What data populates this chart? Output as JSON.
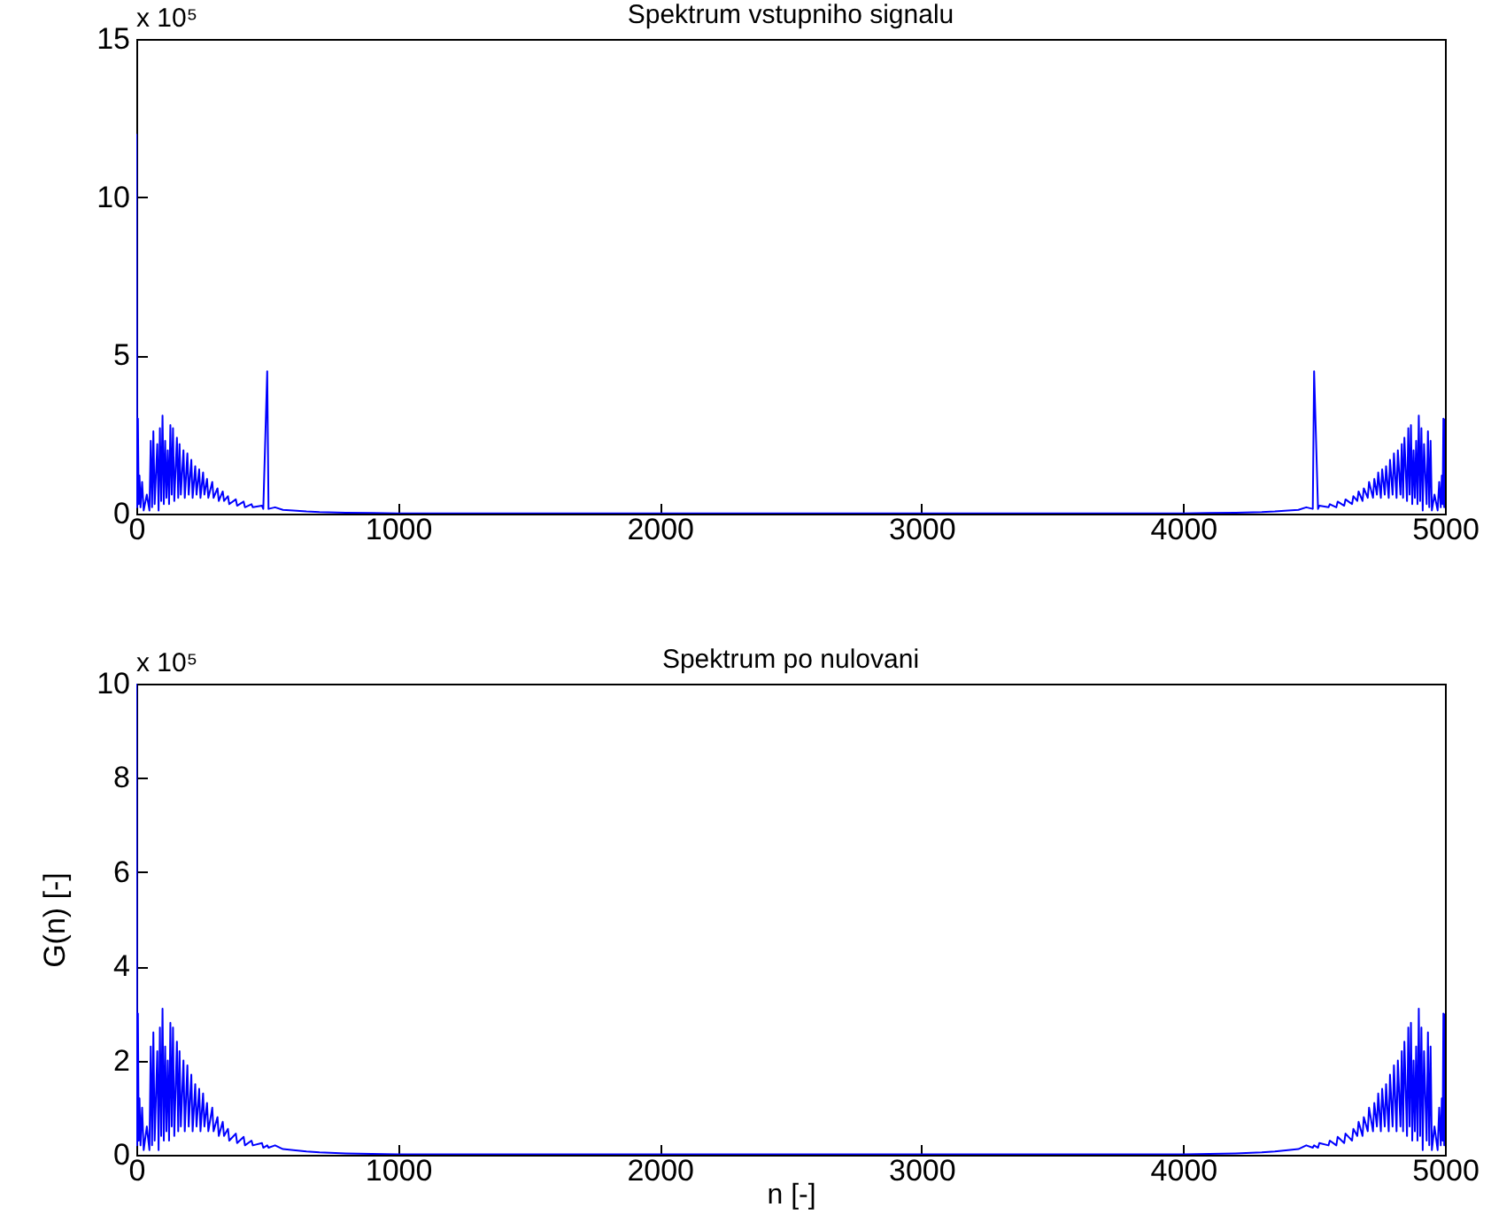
{
  "chart_data": [
    {
      "type": "line",
      "title": "Spektrum vstupniho signalu",
      "annotations": [
        "x 10⁵"
      ],
      "xlim": [
        0,
        5000
      ],
      "xticks": [
        0,
        1000,
        2000,
        3000,
        4000,
        5000
      ],
      "ylim": [
        0,
        15
      ],
      "yticks": [
        0,
        5,
        10,
        15
      ],
      "x": [
        0,
        3,
        6,
        9,
        12,
        16,
        22,
        28,
        40,
        50,
        55,
        60,
        65,
        70,
        80,
        85,
        90,
        95,
        100,
        105,
        110,
        115,
        120,
        125,
        130,
        135,
        140,
        145,
        155,
        160,
        165,
        170,
        180,
        185,
        195,
        200,
        210,
        215,
        225,
        230,
        240,
        245,
        255,
        260,
        270,
        275,
        290,
        295,
        310,
        315,
        330,
        335,
        350,
        355,
        380,
        385,
        410,
        415,
        440,
        445,
        480,
        485,
        500,
        505,
        530,
        560,
        600,
        650,
        700,
        800,
        900,
        1000,
        2000,
        3000,
        4000,
        4100,
        4200,
        4300,
        4350,
        4400,
        4440,
        4470,
        4495,
        4500,
        4515,
        4520,
        4555,
        4560,
        4585,
        4590,
        4615,
        4620,
        4645,
        4650,
        4665,
        4670,
        4685,
        4690,
        4705,
        4710,
        4725,
        4730,
        4740,
        4745,
        4755,
        4760,
        4770,
        4775,
        4785,
        4790,
        4800,
        4805,
        4815,
        4820,
        4830,
        4835,
        4840,
        4845,
        4855,
        4860,
        4865,
        4870,
        4875,
        4880,
        4885,
        4890,
        4895,
        4900,
        4905,
        4910,
        4915,
        4920,
        4930,
        4935,
        4940,
        4945,
        4950,
        4960,
        4972,
        4978,
        4984,
        4988,
        4991,
        4994,
        4997,
        5000
      ],
      "series": [
        {
          "color": "#0000ff",
          "values": [
            12,
            0.2,
            3.0,
            0.3,
            1.2,
            0.2,
            1.0,
            0.1,
            0.6,
            0.1,
            2.3,
            0.2,
            2.6,
            0.3,
            2.2,
            0.1,
            2.7,
            0.4,
            3.1,
            0.3,
            2.3,
            0.5,
            2.0,
            0.3,
            2.8,
            0.6,
            2.7,
            0.4,
            2.4,
            0.5,
            2.2,
            0.6,
            2.0,
            0.5,
            1.9,
            0.6,
            1.7,
            0.5,
            1.5,
            0.6,
            1.4,
            0.5,
            1.3,
            0.6,
            1.1,
            0.5,
            1.0,
            0.5,
            0.8,
            0.4,
            0.7,
            0.4,
            0.55,
            0.3,
            0.45,
            0.25,
            0.38,
            0.2,
            0.3,
            0.2,
            0.25,
            0.15,
            4.5,
            0.15,
            0.2,
            0.12,
            0.1,
            0.07,
            0.05,
            0.03,
            0.02,
            0.01,
            0.01,
            0.01,
            0.01,
            0.02,
            0.03,
            0.05,
            0.07,
            0.1,
            0.12,
            0.2,
            0.15,
            4.5,
            0.15,
            0.25,
            0.2,
            0.3,
            0.2,
            0.38,
            0.25,
            0.45,
            0.3,
            0.55,
            0.4,
            0.7,
            0.4,
            0.8,
            0.5,
            1.0,
            0.5,
            1.1,
            0.6,
            1.3,
            0.5,
            1.4,
            0.6,
            1.5,
            0.5,
            1.7,
            0.6,
            1.9,
            0.5,
            2.0,
            0.6,
            2.2,
            0.5,
            2.4,
            0.4,
            2.7,
            0.6,
            2.8,
            0.3,
            2.0,
            0.5,
            2.3,
            0.3,
            3.1,
            0.4,
            2.7,
            0.1,
            2.2,
            0.3,
            2.6,
            0.2,
            2.3,
            0.1,
            0.6,
            0.1,
            1.0,
            0.2,
            1.2,
            0.3,
            3.0,
            0.2,
            3.0
          ]
        }
      ]
    },
    {
      "type": "line",
      "title": "Spektrum po nulovani",
      "xlabel": "n [-]",
      "ylabel": "G(n) [-]",
      "annotations": [
        "x 10⁵"
      ],
      "xlim": [
        0,
        5000
      ],
      "xticks": [
        0,
        1000,
        2000,
        3000,
        4000,
        5000
      ],
      "ylim": [
        0,
        10
      ],
      "yticks": [
        0,
        2,
        4,
        6,
        8,
        10
      ],
      "x": [
        0,
        3,
        6,
        9,
        12,
        16,
        22,
        28,
        40,
        50,
        55,
        60,
        65,
        70,
        80,
        85,
        90,
        95,
        100,
        105,
        110,
        115,
        120,
        125,
        130,
        135,
        140,
        145,
        155,
        160,
        165,
        170,
        180,
        185,
        195,
        200,
        210,
        215,
        225,
        230,
        240,
        245,
        255,
        260,
        270,
        275,
        290,
        295,
        310,
        315,
        330,
        335,
        350,
        355,
        380,
        385,
        410,
        415,
        440,
        445,
        480,
        485,
        500,
        505,
        530,
        560,
        600,
        650,
        700,
        800,
        900,
        1000,
        2000,
        3000,
        4000,
        4100,
        4200,
        4300,
        4350,
        4400,
        4440,
        4470,
        4495,
        4500,
        4515,
        4520,
        4555,
        4560,
        4585,
        4590,
        4615,
        4620,
        4645,
        4650,
        4665,
        4670,
        4685,
        4690,
        4705,
        4710,
        4725,
        4730,
        4740,
        4745,
        4755,
        4760,
        4770,
        4775,
        4785,
        4790,
        4800,
        4805,
        4815,
        4820,
        4830,
        4835,
        4840,
        4845,
        4855,
        4860,
        4865,
        4870,
        4875,
        4880,
        4885,
        4890,
        4895,
        4900,
        4905,
        4910,
        4915,
        4920,
        4930,
        4935,
        4940,
        4945,
        4950,
        4960,
        4972,
        4978,
        4984,
        4988,
        4991,
        4994,
        4997,
        5000
      ],
      "series": [
        {
          "color": "#0000ff",
          "values": [
            10,
            0.2,
            3.0,
            0.3,
            1.2,
            0.2,
            1.0,
            0.1,
            0.6,
            0.1,
            2.3,
            0.2,
            2.6,
            0.3,
            2.2,
            0.1,
            2.7,
            0.4,
            3.1,
            0.3,
            2.3,
            0.5,
            2.0,
            0.3,
            2.8,
            0.6,
            2.7,
            0.4,
            2.4,
            0.5,
            2.2,
            0.6,
            2.0,
            0.5,
            1.9,
            0.6,
            1.7,
            0.5,
            1.5,
            0.6,
            1.4,
            0.5,
            1.3,
            0.6,
            1.1,
            0.5,
            1.0,
            0.5,
            0.8,
            0.4,
            0.7,
            0.4,
            0.55,
            0.3,
            0.45,
            0.25,
            0.38,
            0.2,
            0.3,
            0.2,
            0.25,
            0.15,
            0.2,
            0.15,
            0.2,
            0.12,
            0.1,
            0.07,
            0.05,
            0.03,
            0.02,
            0.01,
            0.01,
            0.01,
            0.01,
            0.02,
            0.03,
            0.05,
            0.07,
            0.1,
            0.12,
            0.2,
            0.15,
            0.2,
            0.15,
            0.25,
            0.2,
            0.3,
            0.2,
            0.38,
            0.25,
            0.45,
            0.3,
            0.55,
            0.4,
            0.7,
            0.4,
            0.8,
            0.5,
            1.0,
            0.5,
            1.1,
            0.6,
            1.3,
            0.5,
            1.4,
            0.6,
            1.5,
            0.5,
            1.7,
            0.6,
            1.9,
            0.5,
            2.0,
            0.6,
            2.2,
            0.5,
            2.4,
            0.4,
            2.7,
            0.6,
            2.8,
            0.3,
            2.0,
            0.5,
            2.3,
            0.3,
            3.1,
            0.4,
            2.7,
            0.1,
            2.2,
            0.3,
            2.6,
            0.2,
            2.3,
            0.1,
            0.6,
            0.1,
            1.0,
            0.2,
            1.2,
            0.3,
            3.0,
            0.2,
            3.0
          ]
        }
      ]
    }
  ]
}
